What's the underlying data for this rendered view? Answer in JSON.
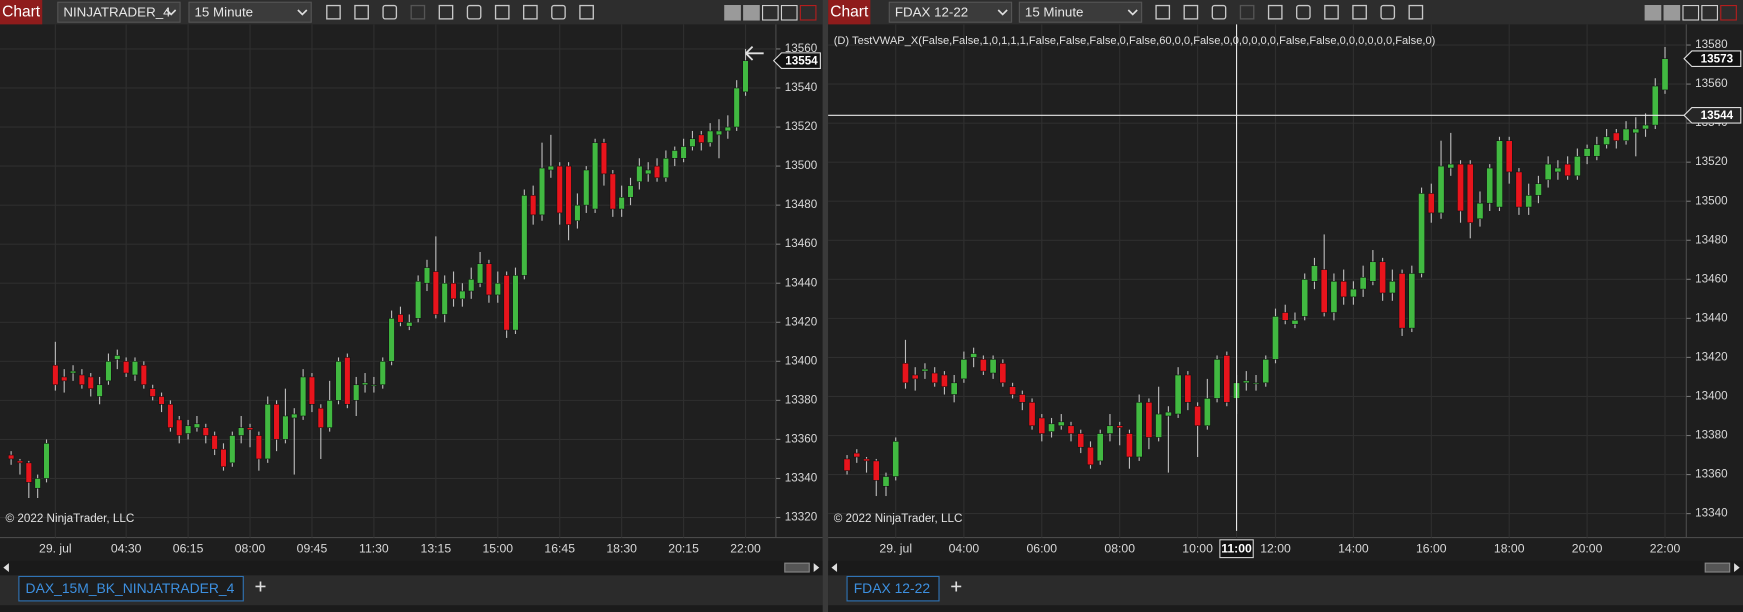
{
  "chart_data": [
    {
      "type": "candlestick",
      "window_label": "Chart",
      "instrument": "NINJATRADER_4",
      "interval": "15 Minute",
      "tab": "DAX_15M_BK_NINJATRADER_4",
      "copyright": "© 2022 NinjaTrader, LLC",
      "up_color": "#41b941",
      "down_color": "#e8141c",
      "grid": true,
      "ylim": [
        13312,
        13568
      ],
      "yticks": [
        13320,
        13340,
        13360,
        13380,
        13400,
        13420,
        13440,
        13460,
        13480,
        13500,
        13520,
        13540,
        13560
      ],
      "last_price": 13554,
      "categories": [
        null,
        null,
        null,
        null,
        null,
        "29. jul",
        null,
        null,
        null,
        null,
        null,
        null,
        null,
        "04:30",
        null,
        null,
        null,
        null,
        null,
        null,
        "06:15",
        null,
        null,
        null,
        null,
        null,
        null,
        "08:00",
        null,
        null,
        null,
        null,
        null,
        null,
        "09:45",
        null,
        null,
        null,
        null,
        null,
        null,
        "11:30",
        null,
        null,
        null,
        null,
        null,
        null,
        "13:15",
        null,
        null,
        null,
        null,
        null,
        null,
        "15:00",
        null,
        null,
        null,
        null,
        null,
        null,
        "16:45",
        null,
        null,
        null,
        null,
        null,
        null,
        "18:30",
        null,
        null,
        null,
        null,
        null,
        null,
        "20:15",
        null,
        null,
        null,
        null,
        null,
        null,
        "22:00"
      ],
      "ohlc": [
        [
          13352,
          13354,
          13347,
          13350
        ],
        [
          13349,
          13350,
          13342,
          13348
        ],
        [
          13348,
          13349,
          13330,
          13338
        ],
        [
          13335,
          13342,
          13330,
          13340
        ],
        [
          13340,
          13360,
          13338,
          13358
        ],
        [
          13398,
          13410,
          13385,
          13388
        ],
        [
          13392,
          13396,
          13384,
          13390
        ],
        [
          13394,
          13398,
          13390,
          13395
        ],
        [
          13393,
          13396,
          13386,
          13388
        ],
        [
          13392,
          13394,
          13382,
          13386
        ],
        [
          13382,
          13392,
          13378,
          13388
        ],
        [
          13390,
          13404,
          13388,
          13400
        ],
        [
          13401,
          13406,
          13396,
          13403
        ],
        [
          13400,
          13402,
          13392,
          13394
        ],
        [
          13393,
          13402,
          13390,
          13400
        ],
        [
          13398,
          13400,
          13386,
          13388
        ],
        [
          13386,
          13388,
          13380,
          13382
        ],
        [
          13382,
          13384,
          13374,
          13378
        ],
        [
          13378,
          13380,
          13364,
          13366
        ],
        [
          13370,
          13372,
          13358,
          13362
        ],
        [
          13363,
          13370,
          13360,
          13367
        ],
        [
          13366,
          13372,
          13364,
          13368
        ],
        [
          13366,
          13368,
          13358,
          13362
        ],
        [
          13362,
          13364,
          13352,
          13355
        ],
        [
          13355,
          13358,
          13344,
          13346
        ],
        [
          13348,
          13364,
          13346,
          13362
        ],
        [
          13362,
          13372,
          13358,
          13366
        ],
        [
          13366,
          13368,
          13356,
          13365
        ],
        [
          13362,
          13364,
          13344,
          13350
        ],
        [
          13350,
          13382,
          13348,
          13378
        ],
        [
          13378,
          13380,
          13354,
          13360
        ],
        [
          13360,
          13386,
          13358,
          13372
        ],
        [
          13371,
          13376,
          13342,
          13373
        ],
        [
          13372,
          13396,
          13370,
          13392
        ],
        [
          13392,
          13394,
          13374,
          13378
        ],
        [
          13376,
          13378,
          13350,
          13366
        ],
        [
          13366,
          13390,
          13364,
          13380
        ],
        [
          13380,
          13402,
          13378,
          13400
        ],
        [
          13402,
          13404,
          13376,
          13378
        ],
        [
          13380,
          13392,
          13372,
          13388
        ],
        [
          13388,
          13394,
          13384,
          13389
        ],
        [
          13388,
          13392,
          13384,
          13388
        ],
        [
          13388,
          13402,
          13386,
          13400
        ],
        [
          13400,
          13426,
          13398,
          13422
        ],
        [
          13424,
          13428,
          13418,
          13420
        ],
        [
          13418,
          13424,
          13416,
          13420
        ],
        [
          13422,
          13444,
          13420,
          13441
        ],
        [
          13440,
          13452,
          13436,
          13448
        ],
        [
          13446,
          13464,
          13422,
          13424
        ],
        [
          13424,
          13444,
          13420,
          13440
        ],
        [
          13440,
          13446,
          13428,
          13432
        ],
        [
          13432,
          13440,
          13428,
          13436
        ],
        [
          13436,
          13448,
          13432,
          13442
        ],
        [
          13440,
          13456,
          13438,
          13450
        ],
        [
          13450,
          13452,
          13430,
          13434
        ],
        [
          13434,
          13446,
          13430,
          13440
        ],
        [
          13444,
          13446,
          13412,
          13416
        ],
        [
          13416,
          13448,
          13414,
          13444
        ],
        [
          13444,
          13488,
          13442,
          13485
        ],
        [
          13485,
          13490,
          13470,
          13475
        ],
        [
          13475,
          13512,
          13472,
          13499
        ],
        [
          13498,
          13516,
          13494,
          13500
        ],
        [
          13500,
          13502,
          13470,
          13476
        ],
        [
          13500,
          13502,
          13462,
          13470
        ],
        [
          13472,
          13486,
          13468,
          13480
        ],
        [
          13480,
          13500,
          13476,
          13498
        ],
        [
          13478,
          13514,
          13476,
          13512
        ],
        [
          13512,
          13514,
          13490,
          13496
        ],
        [
          13496,
          13498,
          13474,
          13478
        ],
        [
          13478,
          13490,
          13474,
          13484
        ],
        [
          13484,
          13494,
          13480,
          13490
        ],
        [
          13492,
          13504,
          13488,
          13500
        ],
        [
          13496,
          13502,
          13492,
          13498
        ],
        [
          13500,
          13504,
          13492,
          13494
        ],
        [
          13494,
          13508,
          13492,
          13504
        ],
        [
          13504,
          13510,
          13500,
          13508
        ],
        [
          13504,
          13514,
          13502,
          13510
        ],
        [
          13510,
          13518,
          13508,
          13514
        ],
        [
          13516,
          13518,
          13508,
          13512
        ],
        [
          13512,
          13522,
          13510,
          13518
        ],
        [
          13516,
          13524,
          13504,
          13518
        ],
        [
          13518,
          13526,
          13514,
          13520
        ],
        [
          13520,
          13544,
          13518,
          13540
        ],
        [
          13538,
          13560,
          13536,
          13554
        ]
      ]
    },
    {
      "type": "candlestick",
      "window_label": "Chart",
      "instrument": "FDAX 12-22",
      "interval": "15 Minute",
      "tab": "FDAX 12-22",
      "copyright": "© 2022 NinjaTrader, LLC",
      "indicator": "(D) TestVWAP_X(False,False,1,0,1,1,1,False,False,False,0,False,60,0,0,False,0,0,0,0,0,0,False,False,0,0,0,0,0,0,False,0)",
      "up_color": "#41b941",
      "down_color": "#e8141c",
      "grid": true,
      "ylim": [
        13330,
        13586
      ],
      "yticks": [
        13340,
        13360,
        13380,
        13400,
        13420,
        13440,
        13460,
        13480,
        13500,
        13520,
        13540,
        13560,
        13580
      ],
      "last_price": 13573,
      "crosshair": {
        "price": 13544,
        "category": "11:00"
      },
      "categories": [
        null,
        null,
        null,
        null,
        null,
        "29. jul",
        null,
        null,
        null,
        null,
        null,
        null,
        "04:00",
        null,
        null,
        null,
        null,
        null,
        null,
        null,
        "06:00",
        null,
        null,
        null,
        null,
        null,
        null,
        null,
        "08:00",
        null,
        null,
        null,
        null,
        null,
        null,
        null,
        "10:00",
        null,
        null,
        null,
        "11:00",
        null,
        null,
        null,
        "12:00",
        null,
        null,
        null,
        null,
        null,
        null,
        null,
        "14:00",
        null,
        null,
        null,
        null,
        null,
        null,
        null,
        "16:00",
        null,
        null,
        null,
        null,
        null,
        null,
        null,
        "18:00",
        null,
        null,
        null,
        null,
        null,
        null,
        null,
        "20:00",
        null,
        null,
        null,
        null,
        null,
        null,
        null,
        "22:00"
      ],
      "ohlc": [
        [
          13368,
          13370,
          13360,
          13362
        ],
        [
          13371,
          13373,
          13366,
          13369
        ],
        [
          13368,
          13369,
          13361,
          13367
        ],
        [
          13367,
          13368,
          13349,
          13357
        ],
        [
          13354,
          13361,
          13349,
          13359
        ],
        [
          13359,
          13379,
          13357,
          13377
        ],
        [
          13417,
          13429,
          13404,
          13407
        ],
        [
          13411,
          13415,
          13403,
          13409
        ],
        [
          13413,
          13417,
          13409,
          13414
        ],
        [
          13412,
          13415,
          13405,
          13407
        ],
        [
          13411,
          13413,
          13401,
          13405
        ],
        [
          13401,
          13411,
          13397,
          13407
        ],
        [
          13409,
          13423,
          13407,
          13419
        ],
        [
          13420,
          13425,
          13415,
          13422
        ],
        [
          13419,
          13421,
          13411,
          13413
        ],
        [
          13412,
          13421,
          13409,
          13419
        ],
        [
          13417,
          13419,
          13405,
          13407
        ],
        [
          13405,
          13407,
          13399,
          13401
        ],
        [
          13401,
          13403,
          13393,
          13397
        ],
        [
          13397,
          13399,
          13383,
          13385
        ],
        [
          13389,
          13391,
          13377,
          13381
        ],
        [
          13382,
          13389,
          13379,
          13386
        ],
        [
          13385,
          13391,
          13383,
          13387
        ],
        [
          13385,
          13387,
          13377,
          13381
        ],
        [
          13381,
          13383,
          13371,
          13374
        ],
        [
          13374,
          13377,
          13363,
          13365
        ],
        [
          13367,
          13383,
          13365,
          13381
        ],
        [
          13381,
          13391,
          13377,
          13385
        ],
        [
          13385,
          13387,
          13375,
          13384
        ],
        [
          13381,
          13383,
          13363,
          13369
        ],
        [
          13369,
          13401,
          13367,
          13397
        ],
        [
          13397,
          13399,
          13373,
          13379
        ],
        [
          13379,
          13405,
          13377,
          13391
        ],
        [
          13390,
          13395,
          13361,
          13392
        ],
        [
          13391,
          13415,
          13389,
          13411
        ],
        [
          13411,
          13413,
          13393,
          13397
        ],
        [
          13395,
          13397,
          13369,
          13385
        ],
        [
          13385,
          13409,
          13383,
          13399
        ],
        [
          13399,
          13421,
          13397,
          13419
        ],
        [
          13421,
          13423,
          13395,
          13397
        ],
        [
          13399,
          13411,
          13391,
          13407
        ],
        [
          13407,
          13413,
          13403,
          13408
        ],
        [
          13407,
          13411,
          13403,
          13407
        ],
        [
          13407,
          13421,
          13405,
          13419
        ],
        [
          13419,
          13445,
          13417,
          13441
        ],
        [
          13443,
          13447,
          13437,
          13439
        ],
        [
          13437,
          13443,
          13435,
          13439
        ],
        [
          13441,
          13463,
          13439,
          13460
        ],
        [
          13459,
          13471,
          13455,
          13467
        ],
        [
          13465,
          13483,
          13441,
          13443
        ],
        [
          13443,
          13463,
          13439,
          13459
        ],
        [
          13459,
          13465,
          13447,
          13451
        ],
        [
          13451,
          13459,
          13447,
          13455
        ],
        [
          13455,
          13467,
          13451,
          13461
        ],
        [
          13459,
          13475,
          13457,
          13469
        ],
        [
          13469,
          13471,
          13449,
          13453
        ],
        [
          13453,
          13465,
          13449,
          13459
        ],
        [
          13463,
          13465,
          13431,
          13435
        ],
        [
          13435,
          13467,
          13433,
          13463
        ],
        [
          13463,
          13507,
          13461,
          13504
        ],
        [
          13504,
          13509,
          13489,
          13494
        ],
        [
          13494,
          13531,
          13491,
          13518
        ],
        [
          13517,
          13535,
          13513,
          13519
        ],
        [
          13519,
          13521,
          13489,
          13495
        ],
        [
          13519,
          13521,
          13481,
          13489
        ],
        [
          13491,
          13505,
          13487,
          13499
        ],
        [
          13499,
          13519,
          13495,
          13517
        ],
        [
          13497,
          13533,
          13495,
          13531
        ],
        [
          13531,
          13533,
          13509,
          13515
        ],
        [
          13515,
          13517,
          13493,
          13497
        ],
        [
          13497,
          13509,
          13493,
          13503
        ],
        [
          13503,
          13513,
          13499,
          13509
        ],
        [
          13511,
          13523,
          13507,
          13519
        ],
        [
          13515,
          13521,
          13511,
          13517
        ],
        [
          13519,
          13523,
          13511,
          13513
        ],
        [
          13513,
          13527,
          13511,
          13523
        ],
        [
          13523,
          13529,
          13519,
          13527
        ],
        [
          13523,
          13533,
          13521,
          13529
        ],
        [
          13529,
          13537,
          13527,
          13533
        ],
        [
          13535,
          13537,
          13527,
          13531
        ],
        [
          13531,
          13541,
          13529,
          13537
        ],
        [
          13535,
          13543,
          13523,
          13537
        ],
        [
          13537,
          13545,
          13533,
          13539
        ],
        [
          13539,
          13563,
          13537,
          13559
        ],
        [
          13557,
          13579,
          13555,
          13573
        ]
      ]
    }
  ]
}
